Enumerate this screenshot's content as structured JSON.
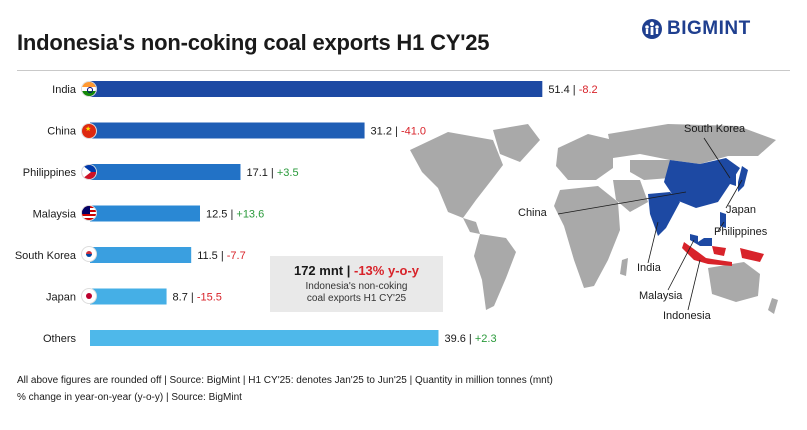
{
  "header": {
    "title": "Indonesia's non-coking coal exports H1 CY'25",
    "brand": "BIGMINT"
  },
  "chart_data": {
    "type": "bar",
    "orientation": "horizontal",
    "title": "Indonesia's non-coking coal exports H1 CY'25",
    "categories": [
      "India",
      "China",
      "Philippines",
      "Malaysia",
      "South Korea",
      "Japan",
      "Others"
    ],
    "values": [
      51.4,
      31.2,
      17.1,
      12.5,
      11.5,
      8.7,
      39.6
    ],
    "change_yoy": [
      "-8.2",
      "-41.0",
      "+3.5",
      "+13.6",
      "-7.7",
      "-15.5",
      "+2.3"
    ],
    "unit": "mnt",
    "bar_colors": [
      "#1d49a3",
      "#1f5eb5",
      "#2272c6",
      "#2a88d4",
      "#3a9fe0",
      "#45afe6",
      "#4eb8ea"
    ],
    "grid": false,
    "legend": "none"
  },
  "summary": {
    "total": "172 mnt",
    "separator": "|",
    "change": "-13% y-o-y",
    "desc_line1": "Indonesia's non-coking",
    "desc_line2": "coal exports H1 CY'25"
  },
  "map": {
    "labels": [
      "South Korea",
      "China",
      "Japan",
      "Philippines",
      "India",
      "Malaysia",
      "Indonesia"
    ]
  },
  "footer": {
    "note1": "All above figures are rounded off | Source: BigMint | H1 CY'25: denotes Jan'25 to Jun'25 | Quantity in million tonnes (mnt)",
    "note2": "% change in year-on-year (y-o-y) | Source: BigMint"
  },
  "colors": {
    "negative": "#d8232a",
    "positive": "#2a9a3b",
    "map_land": "#a9a9a9",
    "map_highlight": "#1d49a3",
    "indonesia": "#d8232a"
  }
}
